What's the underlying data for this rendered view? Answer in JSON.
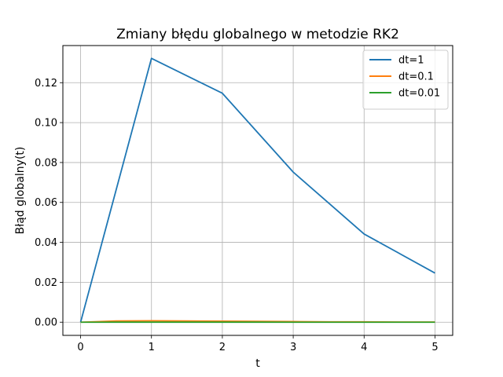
{
  "chart_data": {
    "type": "line",
    "title": "Zmiany błędu globalnego w metodzie RK2",
    "xlabel": "t",
    "ylabel": "Błąd globalny(t)",
    "xlim": [
      -0.25,
      5.25
    ],
    "ylim": [
      -0.0066,
      0.1386
    ],
    "xticks": [
      0,
      1,
      2,
      3,
      4,
      5
    ],
    "xtick_labels": [
      "0",
      "1",
      "2",
      "3",
      "4",
      "5"
    ],
    "yticks": [
      0.0,
      0.02,
      0.04,
      0.06,
      0.08,
      0.1,
      0.12
    ],
    "ytick_labels": [
      "0.00",
      "0.02",
      "0.04",
      "0.06",
      "0.08",
      "0.10",
      "0.12"
    ],
    "grid": true,
    "legend_position": "top-right",
    "series": [
      {
        "name": "dt=1",
        "color": "#1f77b4",
        "x": [
          0,
          1,
          2,
          3,
          4,
          5
        ],
        "y": [
          0.0,
          0.1322,
          0.1147,
          0.0752,
          0.0442,
          0.0246
        ]
      },
      {
        "name": "dt=0.1",
        "color": "#ff7f0e",
        "x": [
          0,
          0.5,
          1,
          1.5,
          2,
          2.5,
          3,
          3.5,
          4,
          4.5,
          5
        ],
        "y": [
          0.0,
          0.0006,
          0.0007,
          0.0006,
          0.0005,
          0.0004,
          0.0003,
          0.0002,
          0.0002,
          0.0001,
          0.0001
        ]
      },
      {
        "name": "dt=0.01",
        "color": "#2ca02c",
        "x": [
          0,
          0.5,
          1,
          1.5,
          2,
          2.5,
          3,
          3.5,
          4,
          4.5,
          5
        ],
        "y": [
          0.0,
          1e-05,
          1e-05,
          1e-05,
          1e-05,
          1e-05,
          0.0,
          0.0,
          0.0,
          0.0,
          0.0
        ]
      }
    ]
  }
}
